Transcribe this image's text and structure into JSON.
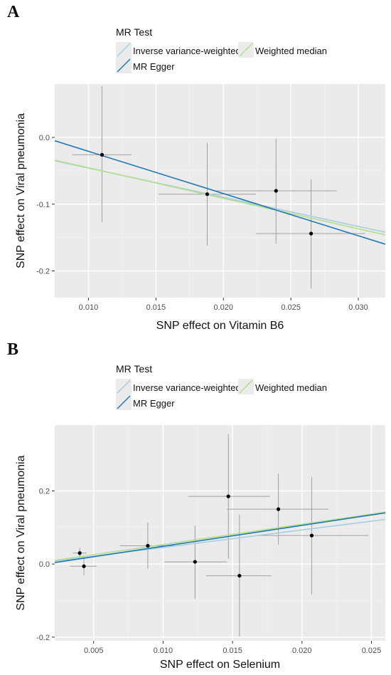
{
  "chart_data": [
    {
      "type": "scatter",
      "panel": "A",
      "xlabel": "SNP effect on Vitamin B6",
      "ylabel": "SNP effect on Viral pneumonia",
      "xlim": [
        0.0075,
        0.032
      ],
      "ylim": [
        -0.24,
        0.08
      ],
      "xticks": [
        0.01,
        0.015,
        0.02,
        0.025,
        0.03
      ],
      "xtick_labels": [
        "0.010",
        "0.015",
        "0.020",
        "0.025",
        "0.030"
      ],
      "yticks": [
        0.0,
        -0.1,
        -0.2
      ],
      "ytick_labels": [
        "0.0",
        "-0.1",
        "-0.2"
      ],
      "grid": true,
      "legend": {
        "title": "MR Test",
        "placement": "top",
        "entries": [
          {
            "label": "Inverse variance-weighted",
            "color": "#a6cee3"
          },
          {
            "label": "Weighted median",
            "color": "#b2df8a"
          },
          {
            "label": "MR Egger",
            "color": "#1f78b4"
          }
        ]
      },
      "points": [
        {
          "x": 0.011,
          "y": -0.026,
          "x_lo": 0.0088,
          "x_hi": 0.0132,
          "y_lo": -0.127,
          "y_hi": 0.077
        },
        {
          "x": 0.0188,
          "y": -0.085,
          "x_lo": 0.0152,
          "x_hi": 0.0224,
          "y_lo": -0.162,
          "y_hi": -0.008
        },
        {
          "x": 0.0239,
          "y": -0.08,
          "x_lo": 0.0193,
          "x_hi": 0.0284,
          "y_lo": -0.159,
          "y_hi": -0.002
        },
        {
          "x": 0.0265,
          "y": -0.144,
          "x_lo": 0.0224,
          "x_hi": 0.0305,
          "y_lo": -0.226,
          "y_hi": -0.063
        }
      ],
      "lines": [
        {
          "name": "Inverse variance-weighted",
          "color": "#a6cee3",
          "x": [
            0.0075,
            0.032
          ],
          "y": [
            -0.035,
            -0.142
          ]
        },
        {
          "name": "Weighted median",
          "color": "#b2df8a",
          "x": [
            0.0075,
            0.032
          ],
          "y": [
            -0.034,
            -0.146
          ]
        },
        {
          "name": "MR Egger",
          "color": "#1f78b4",
          "x": [
            0.0075,
            0.032
          ],
          "y": [
            -0.005,
            -0.16
          ]
        }
      ]
    },
    {
      "type": "scatter",
      "panel": "B",
      "xlabel": "SNP effect on Selenium",
      "ylabel": "SNP effect on Viral pneumonia",
      "xlim": [
        0.0022,
        0.026
      ],
      "ylim": [
        -0.21,
        0.38
      ],
      "xticks": [
        0.005,
        0.01,
        0.015,
        0.02,
        0.025
      ],
      "xtick_labels": [
        "0.005",
        "0.010",
        "0.015",
        "0.020",
        "0.025"
      ],
      "yticks": [
        0.2,
        0.0,
        -0.2
      ],
      "ytick_labels": [
        "0.2",
        "0.0",
        "-0.2"
      ],
      "grid": true,
      "legend": {
        "title": "MR Test",
        "placement": "top",
        "entries": [
          {
            "label": "Inverse variance-weighted",
            "color": "#a6cee3"
          },
          {
            "label": "Weighted median",
            "color": "#b2df8a"
          },
          {
            "label": "MR Egger",
            "color": "#1f78b4"
          }
        ]
      },
      "points": [
        {
          "x": 0.004,
          "y": 0.03,
          "x_lo": 0.0035,
          "x_hi": 0.0045,
          "y_lo": 0.015,
          "y_hi": 0.045
        },
        {
          "x": 0.0043,
          "y": -0.006,
          "x_lo": 0.0033,
          "x_hi": 0.0052,
          "y_lo": -0.03,
          "y_hi": 0.02
        },
        {
          "x": 0.0089,
          "y": 0.05,
          "x_lo": 0.0069,
          "x_hi": 0.011,
          "y_lo": -0.013,
          "y_hi": 0.113
        },
        {
          "x": 0.0123,
          "y": 0.006,
          "x_lo": 0.0101,
          "x_hi": 0.0146,
          "y_lo": -0.095,
          "y_hi": 0.105
        },
        {
          "x": 0.0147,
          "y": 0.185,
          "x_lo": 0.0118,
          "x_hi": 0.0177,
          "y_lo": 0.015,
          "y_hi": 0.355
        },
        {
          "x": 0.0155,
          "y": -0.032,
          "x_lo": 0.0131,
          "x_hi": 0.0178,
          "y_lo": -0.198,
          "y_hi": 0.135
        },
        {
          "x": 0.0183,
          "y": 0.15,
          "x_lo": 0.0146,
          "x_hi": 0.0219,
          "y_lo": 0.053,
          "y_hi": 0.247
        },
        {
          "x": 0.0207,
          "y": 0.078,
          "x_lo": 0.0167,
          "x_hi": 0.0248,
          "y_lo": -0.083,
          "y_hi": 0.238
        }
      ],
      "lines": [
        {
          "name": "Inverse variance-weighted",
          "color": "#a6cee3",
          "x": [
            0.0022,
            0.026
          ],
          "y": [
            0.008,
            0.122
          ]
        },
        {
          "name": "Weighted median",
          "color": "#b2df8a",
          "x": [
            0.0022,
            0.026
          ],
          "y": [
            0.01,
            0.142
          ]
        },
        {
          "name": "MR Egger",
          "color": "#1f78b4",
          "x": [
            0.0022,
            0.026
          ],
          "y": [
            0.004,
            0.14
          ]
        }
      ]
    }
  ]
}
